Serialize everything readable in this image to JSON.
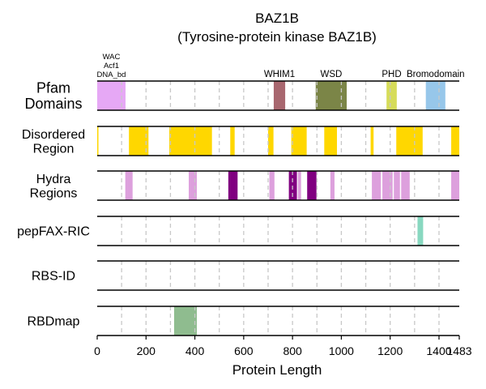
{
  "chart_data": {
    "type": "bar",
    "title": "BAZ1B",
    "subtitle": "(Tyrosine-protein kinase BAZ1B)",
    "xlabel": "Protein Length",
    "xlim": [
      0,
      1483
    ],
    "xticks": [
      0,
      200,
      400,
      600,
      800,
      1000,
      1200,
      1400,
      1483
    ],
    "xtick_labels": [
      "0",
      "200",
      "400",
      "600",
      "800",
      "1000",
      "1200",
      "1400",
      "1483"
    ],
    "grid_lines": [
      100,
      200,
      300,
      400,
      500,
      600,
      700,
      800,
      900,
      1000,
      1100,
      1200,
      1300,
      1400
    ],
    "grid": true,
    "tracks": [
      {
        "label": "Pfam\nDomains",
        "segments": [
          {
            "start": 0,
            "end": 116,
            "color": "#e6a8f5",
            "label": "WAC\nAcf1\nDNA_bd"
          },
          {
            "start": 723,
            "end": 770,
            "color": "#a8676f",
            "label": "WHIM1"
          },
          {
            "start": 895,
            "end": 1022,
            "color": "#7b8547",
            "label": "WSD"
          },
          {
            "start": 1185,
            "end": 1227,
            "color": "#d6dc5a",
            "label": "PHD"
          },
          {
            "start": 1346,
            "end": 1426,
            "color": "#97c7ea",
            "label": "Bromodomain"
          }
        ]
      },
      {
        "label": "Disordered\nRegion",
        "segments": [
          {
            "start": 0,
            "end": 5,
            "color": "#ffd700"
          },
          {
            "start": 130,
            "end": 210,
            "color": "#ffd700"
          },
          {
            "start": 295,
            "end": 470,
            "color": "#ffd700"
          },
          {
            "start": 545,
            "end": 563,
            "color": "#ffd700"
          },
          {
            "start": 700,
            "end": 722,
            "color": "#ffd700"
          },
          {
            "start": 795,
            "end": 858,
            "color": "#ffd700"
          },
          {
            "start": 930,
            "end": 982,
            "color": "#ffd700"
          },
          {
            "start": 1120,
            "end": 1132,
            "color": "#ffd700"
          },
          {
            "start": 1225,
            "end": 1333,
            "color": "#ffd700"
          },
          {
            "start": 1450,
            "end": 1483,
            "color": "#ffd700"
          }
        ]
      },
      {
        "label": "Hydra\nRegions",
        "segments": [
          {
            "start": 115,
            "end": 145,
            "color": "#dda0dd"
          },
          {
            "start": 375,
            "end": 408,
            "color": "#dda0dd"
          },
          {
            "start": 537,
            "end": 575,
            "color": "#800080"
          },
          {
            "start": 705,
            "end": 726,
            "color": "#dda0dd"
          },
          {
            "start": 785,
            "end": 818,
            "color": "#800080"
          },
          {
            "start": 822,
            "end": 835,
            "color": "#dda0dd"
          },
          {
            "start": 860,
            "end": 898,
            "color": "#800080"
          },
          {
            "start": 955,
            "end": 972,
            "color": "#dda0dd"
          },
          {
            "start": 1125,
            "end": 1162,
            "color": "#dda0dd"
          },
          {
            "start": 1168,
            "end": 1210,
            "color": "#dda0dd"
          },
          {
            "start": 1215,
            "end": 1240,
            "color": "#dda0dd"
          },
          {
            "start": 1245,
            "end": 1280,
            "color": "#dda0dd"
          },
          {
            "start": 1450,
            "end": 1483,
            "color": "#dda0dd"
          }
        ]
      },
      {
        "label": "pepFAX-RIC",
        "segments": [
          {
            "start": 1312,
            "end": 1335,
            "color": "#88d8c0"
          }
        ]
      },
      {
        "label": "RBS-ID",
        "segments": []
      },
      {
        "label": "RBDmap",
        "segments": [
          {
            "start": 315,
            "end": 408,
            "color": "#8fbc8f"
          }
        ]
      }
    ]
  }
}
